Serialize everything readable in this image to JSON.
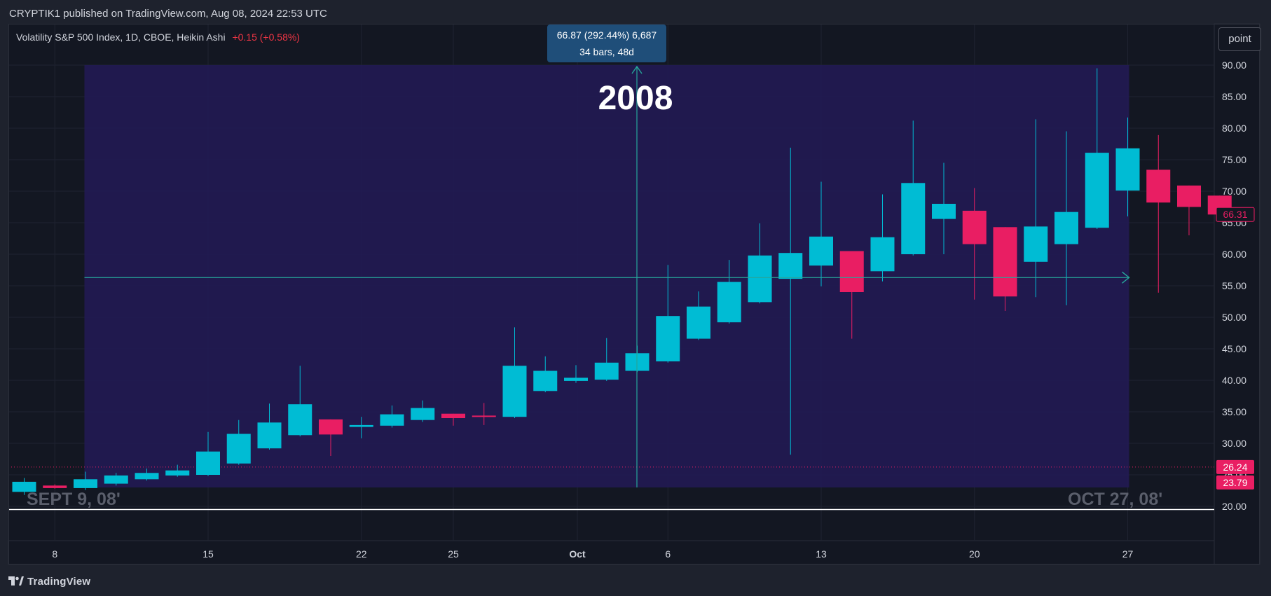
{
  "header": {
    "publish_line": "CRYPTIK1 published on TradingView.com, Aug 08, 2024 22:53 UTC"
  },
  "symbol": {
    "name": "Volatility S&P 500 Index, 1D, CBOE, Heikin Ashi",
    "change": "+0.15 (+0.58%)"
  },
  "toolbar": {
    "point_label": "point"
  },
  "measure_tooltip": {
    "line1": "66.87 (292.44%) 6,687",
    "line2": "34 bars, 48d"
  },
  "annotations": {
    "big_label": "2008",
    "start_label": "SEPT 9, 08'",
    "end_label": "OCT 27, 08'"
  },
  "footer": {
    "brand": "TradingView"
  },
  "colors": {
    "up": "#00bcd4",
    "down": "#e91e63",
    "background": "#131722",
    "range_fill": "#221a52",
    "measure_line": "#26a69a"
  },
  "chart_data": {
    "type": "candlestick",
    "title": "Volatility S&P 500 Index, 1D, CBOE, Heikin Ashi",
    "ylim": [
      17.5,
      94
    ],
    "y_ticks": [
      "20.00",
      "25.00",
      "30.00",
      "35.00",
      "40.00",
      "45.00",
      "50.00",
      "55.00",
      "60.00",
      "65.00",
      "70.00",
      "75.00",
      "80.00",
      "85.00",
      "90.00"
    ],
    "x_ticks": [
      {
        "label": "8",
        "date": "2008-09-08"
      },
      {
        "label": "15",
        "date": "2008-09-15"
      },
      {
        "label": "22",
        "date": "2008-09-22"
      },
      {
        "label": "25",
        "date": "2008-09-25"
      },
      {
        "label": "Oct",
        "date": "2008-10-01"
      },
      {
        "label": "6",
        "date": "2008-10-06"
      },
      {
        "label": "13",
        "date": "2008-10-13"
      },
      {
        "label": "20",
        "date": "2008-10-20"
      },
      {
        "label": "27",
        "date": "2008-10-27"
      }
    ],
    "price_labels": [
      {
        "text": "66.31",
        "value": 66.31,
        "style": "outline"
      },
      {
        "text": "26.24",
        "value": 26.24,
        "style": "filled"
      },
      {
        "text": "23.79",
        "value": 23.79,
        "style": "filled"
      }
    ],
    "horizontal_lines": [
      {
        "value": 26.24,
        "style": "dotted",
        "color": "#e91e63"
      },
      {
        "value": 19.5,
        "style": "solid",
        "color": "#ffffff"
      }
    ],
    "measure_range": {
      "start_date": "2008-09-09",
      "end_date": "2008-10-27",
      "low": 23.0,
      "high": 90.0,
      "arrow_level": 56.3,
      "center_date": "2008-10-03"
    },
    "candles": [
      {
        "date": "2008-09-05",
        "open": 22.3,
        "high": 24.5,
        "low": 21.8,
        "close": 23.9
      },
      {
        "date": "2008-09-08",
        "open": 23.3,
        "high": 23.5,
        "low": 22.8,
        "close": 22.9
      },
      {
        "date": "2008-09-09",
        "open": 22.9,
        "high": 25.5,
        "low": 22.6,
        "close": 24.3
      },
      {
        "date": "2008-09-10",
        "open": 23.6,
        "high": 25.3,
        "low": 23.3,
        "close": 24.9
      },
      {
        "date": "2008-09-11",
        "open": 24.3,
        "high": 26.0,
        "low": 24.1,
        "close": 25.3
      },
      {
        "date": "2008-09-12",
        "open": 24.9,
        "high": 26.6,
        "low": 24.7,
        "close": 25.7
      },
      {
        "date": "2008-09-15",
        "open": 25.0,
        "high": 31.8,
        "low": 24.8,
        "close": 28.7
      },
      {
        "date": "2008-09-16",
        "open": 26.8,
        "high": 33.7,
        "low": 26.6,
        "close": 31.5
      },
      {
        "date": "2008-09-17",
        "open": 29.2,
        "high": 36.3,
        "low": 29.0,
        "close": 33.3
      },
      {
        "date": "2008-09-18",
        "open": 31.3,
        "high": 42.3,
        "low": 31.1,
        "close": 36.2
      },
      {
        "date": "2008-09-19",
        "open": 33.8,
        "high": 33.8,
        "low": 28.0,
        "close": 31.4
      },
      {
        "date": "2008-09-22",
        "open": 32.6,
        "high": 34.2,
        "low": 30.8,
        "close": 32.9
      },
      {
        "date": "2008-09-23",
        "open": 32.8,
        "high": 36.0,
        "low": 32.5,
        "close": 34.6
      },
      {
        "date": "2008-09-24",
        "open": 33.7,
        "high": 36.8,
        "low": 33.4,
        "close": 35.6
      },
      {
        "date": "2008-09-25",
        "open": 34.7,
        "high": 34.7,
        "low": 32.8,
        "close": 34.0
      },
      {
        "date": "2008-09-26",
        "open": 34.4,
        "high": 36.4,
        "low": 32.9,
        "close": 34.3
      },
      {
        "date": "2008-09-29",
        "open": 34.2,
        "high": 48.4,
        "low": 34.0,
        "close": 42.3
      },
      {
        "date": "2008-09-30",
        "open": 38.3,
        "high": 43.8,
        "low": 38.1,
        "close": 41.5
      },
      {
        "date": "2008-10-01",
        "open": 39.9,
        "high": 42.4,
        "low": 39.6,
        "close": 40.4
      },
      {
        "date": "2008-10-02",
        "open": 40.1,
        "high": 46.7,
        "low": 39.9,
        "close": 42.8
      },
      {
        "date": "2008-10-03",
        "open": 41.5,
        "high": 45.5,
        "low": 41.3,
        "close": 44.3
      },
      {
        "date": "2008-10-06",
        "open": 43.0,
        "high": 58.3,
        "low": 42.8,
        "close": 50.2
      },
      {
        "date": "2008-10-07",
        "open": 46.6,
        "high": 54.1,
        "low": 46.4,
        "close": 51.7
      },
      {
        "date": "2008-10-08",
        "open": 49.2,
        "high": 59.1,
        "low": 49.0,
        "close": 55.6
      },
      {
        "date": "2008-10-09",
        "open": 52.4,
        "high": 64.9,
        "low": 52.2,
        "close": 59.8
      },
      {
        "date": "2008-10-10",
        "open": 56.1,
        "high": 76.9,
        "low": 28.2,
        "close": 60.2
      },
      {
        "date": "2008-10-13",
        "open": 58.2,
        "high": 71.5,
        "low": 54.9,
        "close": 62.8
      },
      {
        "date": "2008-10-14",
        "open": 60.5,
        "high": 60.5,
        "low": 46.6,
        "close": 54.0
      },
      {
        "date": "2008-10-15",
        "open": 57.3,
        "high": 69.5,
        "low": 55.7,
        "close": 62.7
      },
      {
        "date": "2008-10-16",
        "open": 60.0,
        "high": 81.2,
        "low": 59.8,
        "close": 71.3
      },
      {
        "date": "2008-10-17",
        "open": 65.6,
        "high": 74.5,
        "low": 60.0,
        "close": 68.0
      },
      {
        "date": "2008-10-20",
        "open": 66.9,
        "high": 70.5,
        "low": 52.8,
        "close": 61.6
      },
      {
        "date": "2008-10-21",
        "open": 64.3,
        "high": 64.3,
        "low": 51.0,
        "close": 53.3
      },
      {
        "date": "2008-10-22",
        "open": 58.8,
        "high": 81.4,
        "low": 53.2,
        "close": 64.4
      },
      {
        "date": "2008-10-23",
        "open": 61.6,
        "high": 79.5,
        "low": 51.9,
        "close": 66.7
      },
      {
        "date": "2008-10-24",
        "open": 64.2,
        "high": 89.5,
        "low": 64.0,
        "close": 76.1
      },
      {
        "date": "2008-10-27",
        "open": 70.1,
        "high": 81.7,
        "low": 66.0,
        "close": 76.8
      },
      {
        "date": "2008-10-28",
        "open": 73.4,
        "high": 78.9,
        "low": 53.9,
        "close": 68.2
      },
      {
        "date": "2008-10-29",
        "open": 70.9,
        "high": 70.9,
        "low": 63.0,
        "close": 67.5
      },
      {
        "date": "2008-10-30",
        "open": 69.3,
        "high": 69.3,
        "low": 66.0,
        "close": 66.3
      }
    ]
  }
}
